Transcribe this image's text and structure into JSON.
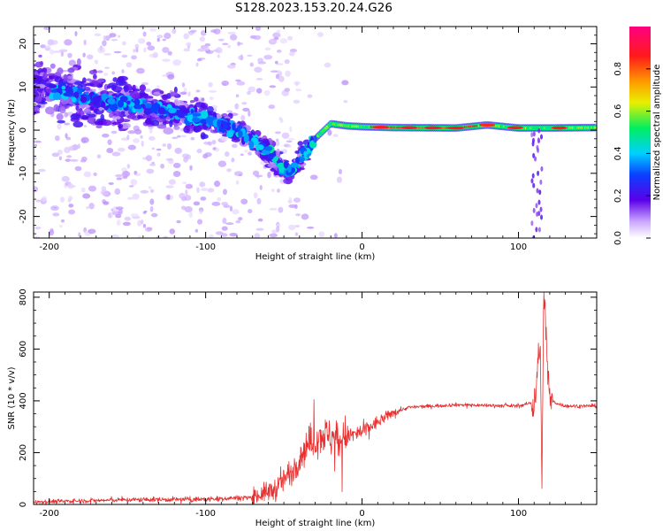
{
  "title": "S128.2023.153.20.24.G26",
  "chart_data": [
    {
      "type": "heatmap",
      "xlabel": "Height of straight line (km)",
      "ylabel": "Frequency (Hz)",
      "xlim": [
        -210,
        150
      ],
      "ylim": [
        -25,
        24
      ],
      "x_ticks": [
        -200,
        -100,
        0,
        100
      ],
      "y_ticks": [
        -20,
        -10,
        0,
        10,
        20
      ],
      "colorbar": {
        "label": "Normalized spectral amplitude",
        "range": [
          0,
          1
        ],
        "ticks": [
          "0.0",
          "0.2",
          "0.4",
          "0.6",
          "0.8"
        ]
      },
      "ridge": {
        "x": [
          -210,
          -190,
          -170,
          -150,
          -130,
          -110,
          -90,
          -70,
          -60,
          -50,
          -45,
          -40,
          -30,
          -20,
          -10,
          0,
          20,
          60,
          80,
          100,
          120,
          150
        ],
        "y": [
          10,
          9,
          7,
          6,
          5,
          3.5,
          1.5,
          -2,
          -5,
          -9,
          -10,
          -7,
          -2,
          1.5,
          1,
          0.8,
          0.6,
          0.5,
          1.2,
          0.5,
          0.5,
          0.6
        ]
      }
    },
    {
      "type": "line",
      "xlabel": "Height of straight line (km)",
      "ylabel": "SNR (10 * v/v)",
      "xlim": [
        -210,
        150
      ],
      "ylim": [
        0,
        820
      ],
      "x_ticks": [
        -200,
        -100,
        0,
        100
      ],
      "y_ticks": [
        0,
        200,
        400,
        600,
        800
      ],
      "series": [
        {
          "color": "#e83030",
          "x": [
            -210,
            -150,
            -100,
            -70,
            -55,
            -45,
            -35,
            -25,
            -15,
            0,
            20,
            30,
            60,
            100,
            110,
            114,
            115,
            116,
            120,
            130,
            150
          ],
          "y": [
            10,
            18,
            20,
            28,
            60,
            130,
            230,
            270,
            250,
            280,
            355,
            375,
            385,
            380,
            395,
            620,
            30,
            820,
            400,
            380,
            380
          ]
        }
      ]
    }
  ]
}
